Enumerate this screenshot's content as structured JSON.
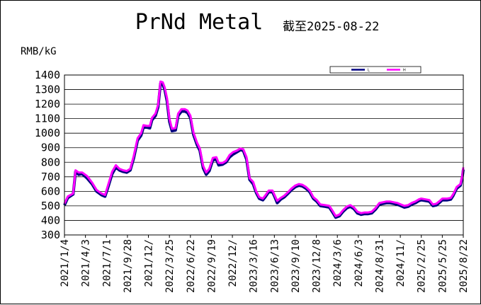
{
  "chart_data": {
    "type": "line",
    "title": "PrNd Metal",
    "subtitle": "截至2025-08-22",
    "ylabel": "RMB/kG",
    "ylim": [
      300,
      1400
    ],
    "yticks": [
      300,
      400,
      500,
      600,
      700,
      800,
      900,
      1000,
      1100,
      1200,
      1300,
      1400
    ],
    "xlim": [
      "2021-01-04",
      "2025-08-22"
    ],
    "xtick_labels": [
      "2021/1/4",
      "2021/4/3",
      "2021/7/1",
      "2021/9/28",
      "2021/12/",
      "2022/3/25",
      "2022/6/22",
      "2022/9/19",
      "2022/12/",
      "2023/3/16",
      "2023/6/13",
      "2023/9/10",
      "2023/12/8",
      "2024/3/6",
      "2024/6/3",
      "2024/8/31",
      "2024/11/",
      "2025/2/25",
      "2025/5/25",
      "2025/8/22"
    ],
    "grid": true,
    "legend_position": "top-right",
    "series": [
      {
        "name": "L",
        "color": "#000080",
        "points": [
          [
            "2021-01-04",
            505
          ],
          [
            "2021-01-18",
            555
          ],
          [
            "2021-02-10",
            580
          ],
          [
            "2021-02-20",
            735
          ],
          [
            "2021-03-05",
            715
          ],
          [
            "2021-03-20",
            720
          ],
          [
            "2021-04-10",
            690
          ],
          [
            "2021-05-01",
            650
          ],
          [
            "2021-05-20",
            600
          ],
          [
            "2021-06-10",
            575
          ],
          [
            "2021-06-25",
            565
          ],
          [
            "2021-07-10",
            640
          ],
          [
            "2021-07-25",
            720
          ],
          [
            "2021-08-10",
            765
          ],
          [
            "2021-08-25",
            745
          ],
          [
            "2021-09-10",
            735
          ],
          [
            "2021-09-25",
            730
          ],
          [
            "2021-10-10",
            745
          ],
          [
            "2021-10-25",
            830
          ],
          [
            "2021-11-10",
            950
          ],
          [
            "2021-11-25",
            985
          ],
          [
            "2021-12-05",
            1040
          ],
          [
            "2021-12-20",
            1040
          ],
          [
            "2022-01-01",
            1035
          ],
          [
            "2022-01-10",
            1090
          ],
          [
            "2022-01-25",
            1120
          ],
          [
            "2022-02-05",
            1180
          ],
          [
            "2022-02-15",
            1340
          ],
          [
            "2022-02-25",
            1335
          ],
          [
            "2022-03-05",
            1300
          ],
          [
            "2022-03-15",
            1220
          ],
          [
            "2022-03-25",
            1080
          ],
          [
            "2022-04-05",
            1015
          ],
          [
            "2022-04-20",
            1020
          ],
          [
            "2022-05-01",
            1120
          ],
          [
            "2022-05-15",
            1150
          ],
          [
            "2022-05-30",
            1150
          ],
          [
            "2022-06-10",
            1140
          ],
          [
            "2022-06-22",
            1105
          ],
          [
            "2022-07-05",
            990
          ],
          [
            "2022-07-20",
            920
          ],
          [
            "2022-08-01",
            880
          ],
          [
            "2022-08-15",
            760
          ],
          [
            "2022-08-28",
            715
          ],
          [
            "2022-09-10",
            740
          ],
          [
            "2022-09-25",
            815
          ],
          [
            "2022-10-10",
            820
          ],
          [
            "2022-10-20",
            780
          ],
          [
            "2022-11-05",
            785
          ],
          [
            "2022-11-20",
            800
          ],
          [
            "2022-12-05",
            835
          ],
          [
            "2022-12-20",
            855
          ],
          [
            "2023-01-05",
            870
          ],
          [
            "2023-01-20",
            885
          ],
          [
            "2023-02-01",
            880
          ],
          [
            "2023-02-15",
            820
          ],
          [
            "2023-02-28",
            680
          ],
          [
            "2023-03-15",
            650
          ],
          [
            "2023-03-28",
            590
          ],
          [
            "2023-04-10",
            550
          ],
          [
            "2023-04-25",
            540
          ],
          [
            "2023-05-05",
            560
          ],
          [
            "2023-05-20",
            595
          ],
          [
            "2023-06-05",
            595
          ],
          [
            "2023-06-15",
            560
          ],
          [
            "2023-06-25",
            520
          ],
          [
            "2023-07-10",
            545
          ],
          [
            "2023-07-25",
            560
          ],
          [
            "2023-08-10",
            585
          ],
          [
            "2023-08-25",
            610
          ],
          [
            "2023-09-10",
            630
          ],
          [
            "2023-09-25",
            640
          ],
          [
            "2023-10-10",
            635
          ],
          [
            "2023-10-25",
            620
          ],
          [
            "2023-11-10",
            595
          ],
          [
            "2023-11-25",
            550
          ],
          [
            "2023-12-10",
            530
          ],
          [
            "2023-12-25",
            500
          ],
          [
            "2024-01-15",
            495
          ],
          [
            "2024-02-01",
            490
          ],
          [
            "2024-02-15",
            455
          ],
          [
            "2024-02-28",
            420
          ],
          [
            "2024-03-15",
            430
          ],
          [
            "2024-03-30",
            460
          ],
          [
            "2024-04-15",
            485
          ],
          [
            "2024-04-30",
            495
          ],
          [
            "2024-05-15",
            480
          ],
          [
            "2024-05-30",
            450
          ],
          [
            "2024-06-15",
            440
          ],
          [
            "2024-06-30",
            445
          ],
          [
            "2024-07-15",
            445
          ],
          [
            "2024-07-30",
            450
          ],
          [
            "2024-08-15",
            475
          ],
          [
            "2024-08-31",
            510
          ],
          [
            "2024-09-15",
            515
          ],
          [
            "2024-09-30",
            520
          ],
          [
            "2024-10-15",
            520
          ],
          [
            "2024-10-31",
            515
          ],
          [
            "2024-11-15",
            510
          ],
          [
            "2024-11-30",
            500
          ],
          [
            "2024-12-15",
            490
          ],
          [
            "2024-12-31",
            495
          ],
          [
            "2025-01-15",
            510
          ],
          [
            "2025-01-31",
            520
          ],
          [
            "2025-02-15",
            535
          ],
          [
            "2025-02-25",
            540
          ],
          [
            "2025-03-15",
            535
          ],
          [
            "2025-03-31",
            530
          ],
          [
            "2025-04-15",
            500
          ],
          [
            "2025-04-30",
            505
          ],
          [
            "2025-05-15",
            525
          ],
          [
            "2025-05-25",
            540
          ],
          [
            "2025-06-15",
            540
          ],
          [
            "2025-06-30",
            545
          ],
          [
            "2025-07-10",
            570
          ],
          [
            "2025-07-25",
            620
          ],
          [
            "2025-08-10",
            640
          ],
          [
            "2025-08-18",
            700
          ],
          [
            "2025-08-22",
            750
          ]
        ]
      },
      {
        "name": "H",
        "color": "#ff00ff",
        "points": [
          [
            "2021-01-04",
            515
          ],
          [
            "2021-01-18",
            565
          ],
          [
            "2021-02-10",
            585
          ],
          [
            "2021-02-20",
            745
          ],
          [
            "2021-03-05",
            730
          ],
          [
            "2021-03-20",
            730
          ],
          [
            "2021-04-10",
            705
          ],
          [
            "2021-05-01",
            660
          ],
          [
            "2021-05-20",
            610
          ],
          [
            "2021-06-10",
            585
          ],
          [
            "2021-06-25",
            575
          ],
          [
            "2021-07-10",
            655
          ],
          [
            "2021-07-25",
            735
          ],
          [
            "2021-08-10",
            780
          ],
          [
            "2021-08-25",
            755
          ],
          [
            "2021-09-10",
            745
          ],
          [
            "2021-09-25",
            740
          ],
          [
            "2021-10-10",
            755
          ],
          [
            "2021-10-25",
            845
          ],
          [
            "2021-11-10",
            965
          ],
          [
            "2021-11-25",
            1000
          ],
          [
            "2021-12-05",
            1055
          ],
          [
            "2021-12-20",
            1050
          ],
          [
            "2022-01-01",
            1050
          ],
          [
            "2022-01-10",
            1105
          ],
          [
            "2022-01-25",
            1135
          ],
          [
            "2022-02-05",
            1195
          ],
          [
            "2022-02-15",
            1355
          ],
          [
            "2022-02-25",
            1350
          ],
          [
            "2022-03-05",
            1315
          ],
          [
            "2022-03-15",
            1240
          ],
          [
            "2022-03-25",
            1100
          ],
          [
            "2022-04-05",
            1030
          ],
          [
            "2022-04-20",
            1035
          ],
          [
            "2022-05-01",
            1135
          ],
          [
            "2022-05-15",
            1165
          ],
          [
            "2022-05-30",
            1165
          ],
          [
            "2022-06-10",
            1155
          ],
          [
            "2022-06-22",
            1120
          ],
          [
            "2022-07-05",
            1005
          ],
          [
            "2022-07-20",
            935
          ],
          [
            "2022-08-01",
            895
          ],
          [
            "2022-08-15",
            775
          ],
          [
            "2022-08-28",
            730
          ],
          [
            "2022-09-10",
            755
          ],
          [
            "2022-09-25",
            830
          ],
          [
            "2022-10-10",
            835
          ],
          [
            "2022-10-20",
            795
          ],
          [
            "2022-11-05",
            795
          ],
          [
            "2022-11-20",
            810
          ],
          [
            "2022-12-05",
            850
          ],
          [
            "2022-12-20",
            870
          ],
          [
            "2023-01-05",
            880
          ],
          [
            "2023-01-20",
            895
          ],
          [
            "2023-02-01",
            890
          ],
          [
            "2023-02-15",
            835
          ],
          [
            "2023-02-28",
            690
          ],
          [
            "2023-03-15",
            665
          ],
          [
            "2023-03-28",
            600
          ],
          [
            "2023-04-10",
            560
          ],
          [
            "2023-04-25",
            550
          ],
          [
            "2023-05-05",
            570
          ],
          [
            "2023-05-20",
            605
          ],
          [
            "2023-06-05",
            605
          ],
          [
            "2023-06-15",
            570
          ],
          [
            "2023-06-25",
            535
          ],
          [
            "2023-07-10",
            555
          ],
          [
            "2023-07-25",
            570
          ],
          [
            "2023-08-10",
            595
          ],
          [
            "2023-08-25",
            620
          ],
          [
            "2023-09-10",
            640
          ],
          [
            "2023-09-25",
            650
          ],
          [
            "2023-10-10",
            645
          ],
          [
            "2023-10-25",
            630
          ],
          [
            "2023-11-10",
            605
          ],
          [
            "2023-11-25",
            560
          ],
          [
            "2023-12-10",
            540
          ],
          [
            "2023-12-25",
            510
          ],
          [
            "2024-01-15",
            505
          ],
          [
            "2024-02-01",
            500
          ],
          [
            "2024-02-15",
            465
          ],
          [
            "2024-02-28",
            430
          ],
          [
            "2024-03-15",
            440
          ],
          [
            "2024-03-30",
            470
          ],
          [
            "2024-04-15",
            495
          ],
          [
            "2024-04-30",
            505
          ],
          [
            "2024-05-15",
            490
          ],
          [
            "2024-05-30",
            460
          ],
          [
            "2024-06-15",
            450
          ],
          [
            "2024-06-30",
            455
          ],
          [
            "2024-07-15",
            455
          ],
          [
            "2024-07-30",
            460
          ],
          [
            "2024-08-15",
            485
          ],
          [
            "2024-08-31",
            520
          ],
          [
            "2024-09-15",
            525
          ],
          [
            "2024-09-30",
            530
          ],
          [
            "2024-10-15",
            530
          ],
          [
            "2024-10-31",
            525
          ],
          [
            "2024-11-15",
            520
          ],
          [
            "2024-11-30",
            510
          ],
          [
            "2024-12-15",
            500
          ],
          [
            "2024-12-31",
            505
          ],
          [
            "2025-01-15",
            520
          ],
          [
            "2025-01-31",
            530
          ],
          [
            "2025-02-15",
            545
          ],
          [
            "2025-02-25",
            550
          ],
          [
            "2025-03-15",
            545
          ],
          [
            "2025-03-31",
            540
          ],
          [
            "2025-04-15",
            510
          ],
          [
            "2025-04-30",
            515
          ],
          [
            "2025-05-15",
            535
          ],
          [
            "2025-05-25",
            550
          ],
          [
            "2025-06-15",
            550
          ],
          [
            "2025-06-30",
            555
          ],
          [
            "2025-07-10",
            580
          ],
          [
            "2025-07-25",
            630
          ],
          [
            "2025-08-10",
            650
          ],
          [
            "2025-08-18",
            710
          ],
          [
            "2025-08-22",
            765
          ]
        ]
      }
    ]
  }
}
